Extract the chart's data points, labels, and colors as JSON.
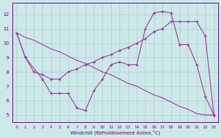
{
  "bg_color": "#cce8e8",
  "grid_color": "#aacccc",
  "line_color": "#993399",
  "line1": {
    "x": [
      0,
      1,
      3,
      4,
      5,
      6,
      7,
      8,
      9,
      10,
      11,
      12,
      13,
      14,
      15,
      16,
      17,
      18,
      19,
      20,
      21,
      22,
      23
    ],
    "y": [
      10.7,
      9.0,
      7.5,
      6.5,
      6.5,
      6.5,
      5.5,
      5.3,
      6.7,
      7.5,
      8.5,
      8.7,
      8.5,
      8.5,
      11.0,
      12.1,
      12.2,
      12.1,
      9.9,
      9.9,
      8.5,
      6.3,
      5.0
    ],
    "marker": true
  },
  "line2": {
    "x": [
      0,
      1,
      2,
      3,
      4,
      5,
      6,
      7,
      8,
      9,
      10,
      11,
      12,
      13,
      14,
      15,
      16,
      17,
      18,
      19,
      20,
      21,
      22,
      23
    ],
    "y": [
      10.7,
      9.0,
      8.0,
      7.8,
      7.5,
      7.5,
      8.0,
      8.2,
      8.5,
      8.7,
      9.0,
      9.2,
      9.5,
      9.7,
      10.0,
      10.3,
      10.8,
      11.0,
      11.5,
      11.5,
      11.5,
      11.5,
      10.5,
      5.0
    ],
    "marker": true
  },
  "line3": {
    "x": [
      0,
      1,
      2,
      3,
      4,
      5,
      6,
      7,
      8,
      9,
      10,
      11,
      12,
      13,
      14,
      15,
      16,
      17,
      18,
      19,
      20,
      21,
      22,
      23
    ],
    "y": [
      10.7,
      10.4,
      10.2,
      9.9,
      9.6,
      9.4,
      9.1,
      8.8,
      8.6,
      8.3,
      8.0,
      7.8,
      7.5,
      7.2,
      7.0,
      6.7,
      6.4,
      6.2,
      5.9,
      5.6,
      5.4,
      5.1,
      5.0,
      5.0
    ],
    "marker": false
  },
  "ylim": [
    4.5,
    12.8
  ],
  "xlim": [
    -0.5,
    23.5
  ],
  "yticks": [
    5,
    6,
    7,
    8,
    9,
    10,
    11,
    12
  ],
  "xticks": [
    0,
    1,
    2,
    3,
    4,
    5,
    6,
    7,
    8,
    9,
    10,
    11,
    12,
    13,
    14,
    15,
    16,
    17,
    18,
    19,
    20,
    21,
    22,
    23
  ],
  "xlabel": "Windchill (Refroidissement éolien,°C)"
}
